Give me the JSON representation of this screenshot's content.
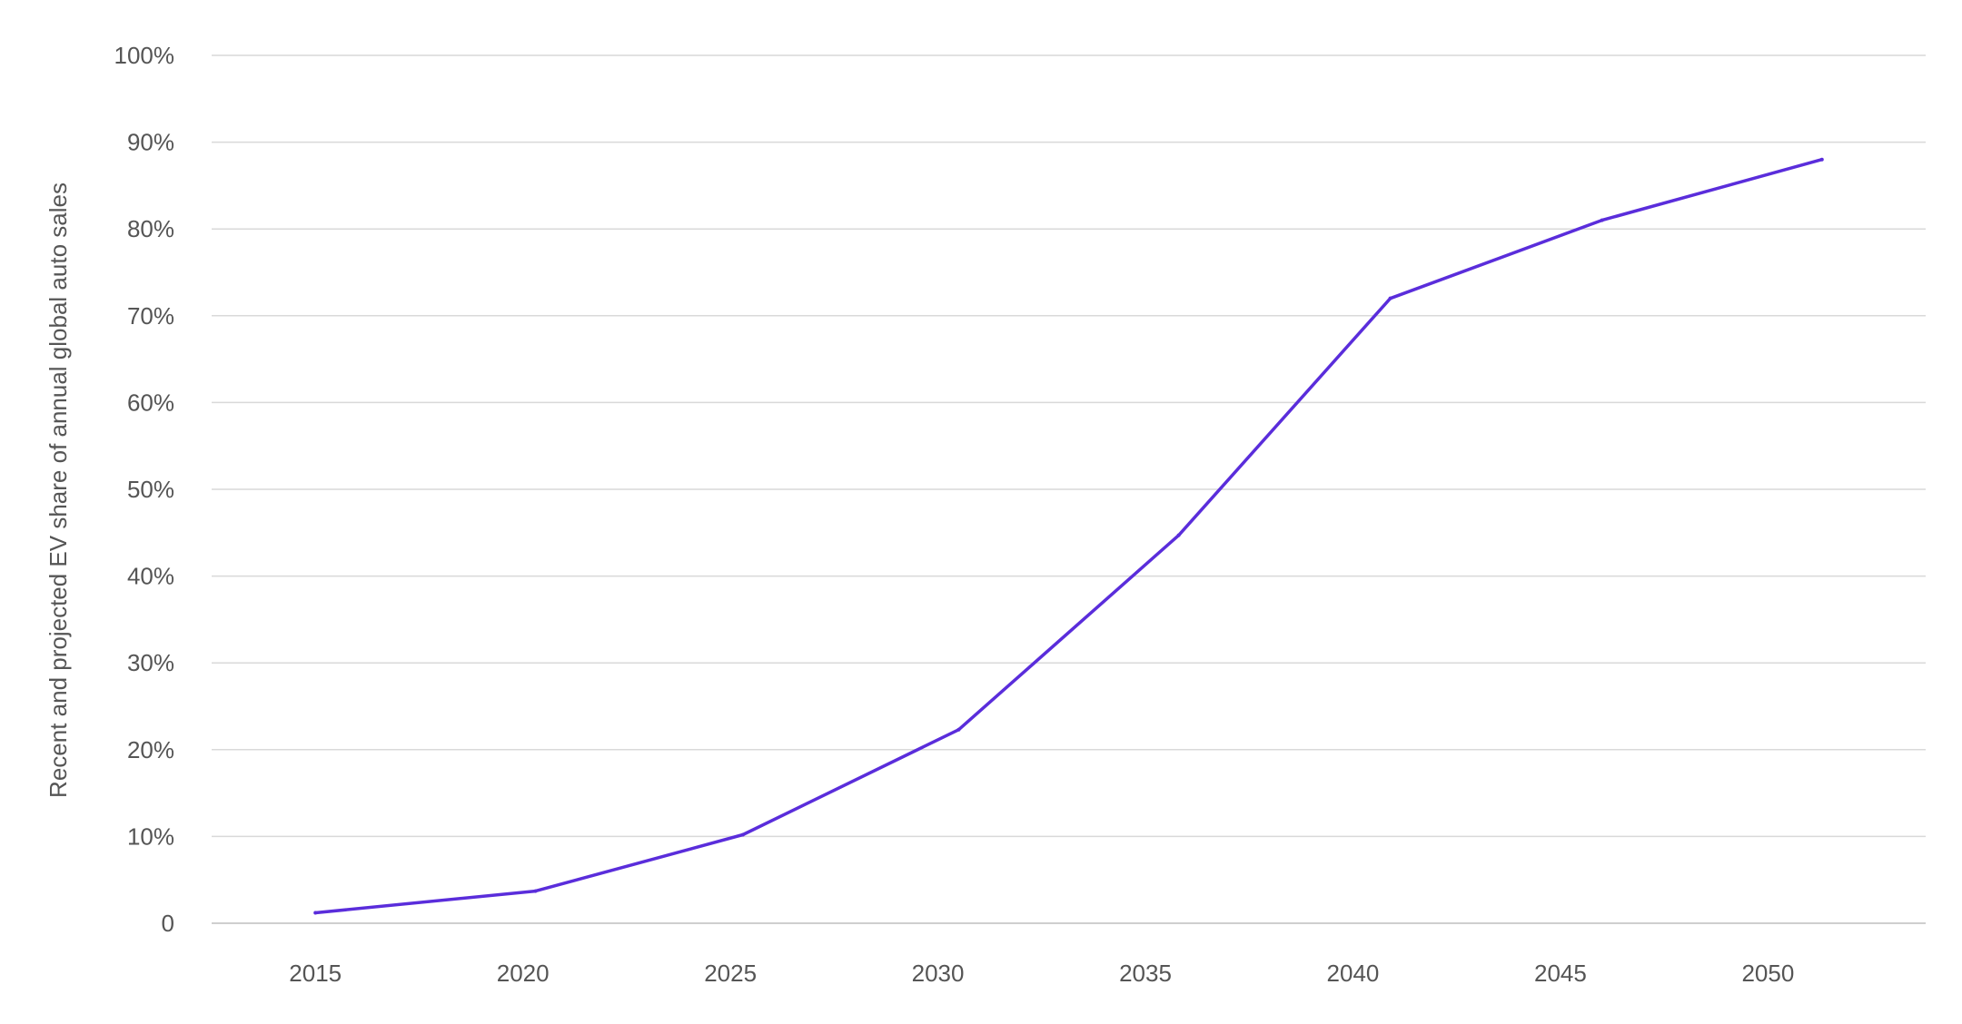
{
  "chart_data": {
    "type": "line",
    "ylabel": "Recent and projected EV share of annual global auto sales",
    "xlabel": "",
    "title": "",
    "x_ticks": [
      "2015",
      "2020",
      "2025",
      "2030",
      "2035",
      "2040",
      "2045",
      "2050"
    ],
    "y_ticks": [
      "0",
      "10%",
      "20%",
      "30%",
      "40%",
      "50%",
      "60%",
      "70%",
      "80%",
      "90%",
      "100%"
    ],
    "xlim": [
      2012.5,
      2053.8
    ],
    "ylim": [
      0,
      100
    ],
    "grid": true,
    "line_color": "#5a2ddb",
    "grid_color": "#d9d9d9",
    "text_color": "#555555",
    "series": [
      {
        "x": [
          2015,
          2020.3,
          2025.3,
          2030.5,
          2035.8,
          2040.9,
          2046,
          2051.3
        ],
        "values": [
          1.2,
          3.7,
          10.2,
          22.3,
          44.7,
          72,
          81,
          88
        ]
      }
    ]
  }
}
